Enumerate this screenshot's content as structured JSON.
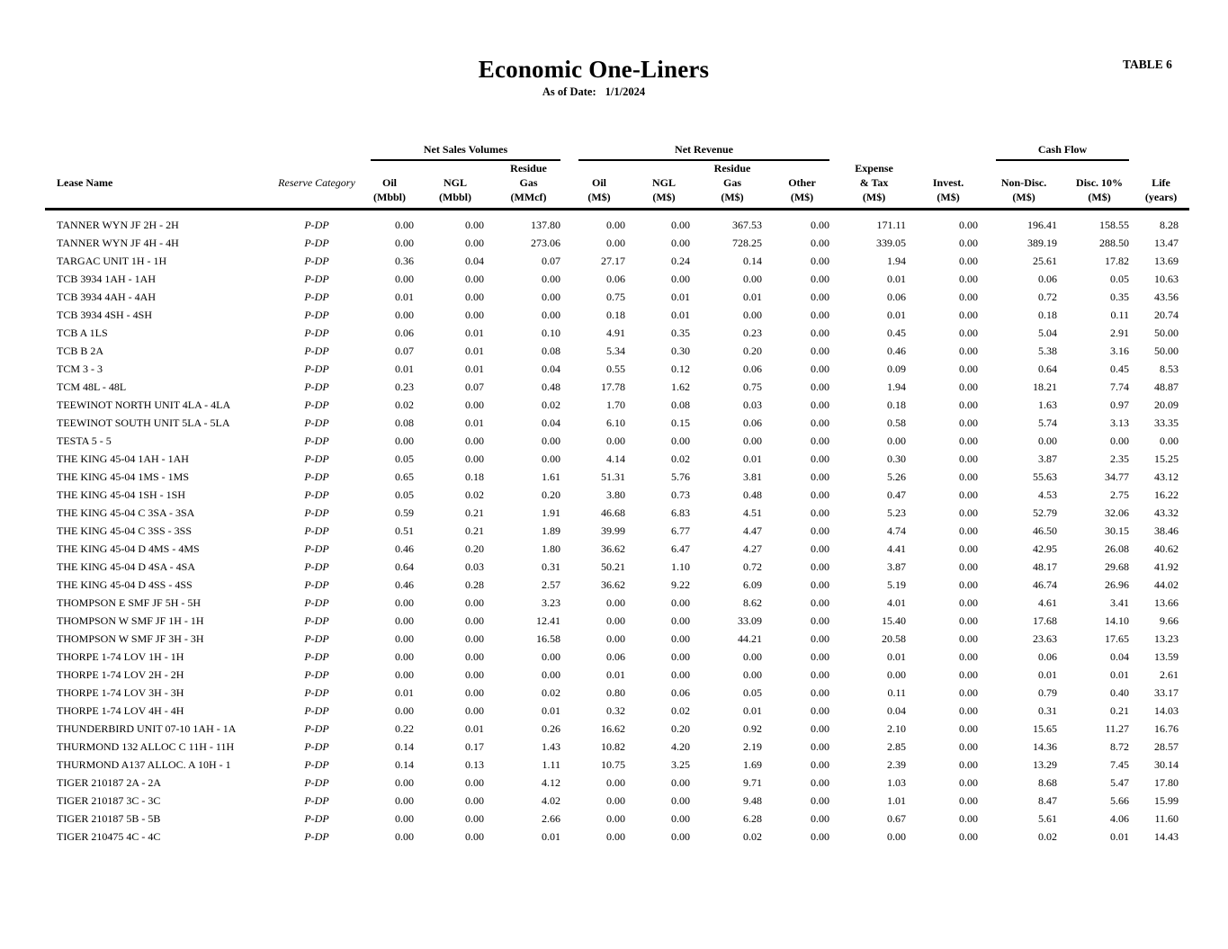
{
  "header": {
    "title": "Economic One-Liners",
    "as_of_label": "As of Date:",
    "as_of_date": "1/1/2024",
    "table_label": "TABLE 6"
  },
  "table": {
    "groups": {
      "net_sales_volumes": "Net Sales Volumes",
      "net_revenue": "Net Revenue",
      "cash_flow": "Cash Flow"
    },
    "columns": {
      "lease_name": [
        "Lease Name"
      ],
      "reserve_category": [
        "Reserve Category"
      ],
      "oil_vol": [
        "Oil",
        "(Mbbl)"
      ],
      "ngl_vol": [
        "NGL",
        "(Mbbl)"
      ],
      "gas_vol": [
        "Residue",
        "Gas",
        "(MMcf)"
      ],
      "oil_rev": [
        "Oil",
        "(M$)"
      ],
      "ngl_rev": [
        "NGL",
        "(M$)"
      ],
      "gas_rev": [
        "Residue",
        "Gas",
        "(M$)"
      ],
      "other_rev": [
        "Other",
        "(M$)"
      ],
      "expense_tax": [
        "Expense",
        "& Tax",
        "(M$)"
      ],
      "invest": [
        "Invest.",
        "(M$)"
      ],
      "nondisc": [
        "Non-Disc.",
        "(M$)"
      ],
      "disc10": [
        "Disc. 10%",
        "(M$)"
      ],
      "life": [
        "Life",
        "(years)"
      ]
    },
    "rows": [
      [
        "TANNER WYN JF 2H - 2H",
        "P-DP",
        "0.00",
        "0.00",
        "137.80",
        "0.00",
        "0.00",
        "367.53",
        "0.00",
        "171.11",
        "0.00",
        "196.41",
        "158.55",
        "8.28"
      ],
      [
        "TANNER WYN JF 4H - 4H",
        "P-DP",
        "0.00",
        "0.00",
        "273.06",
        "0.00",
        "0.00",
        "728.25",
        "0.00",
        "339.05",
        "0.00",
        "389.19",
        "288.50",
        "13.47"
      ],
      [
        "TARGAC UNIT 1H - 1H",
        "P-DP",
        "0.36",
        "0.04",
        "0.07",
        "27.17",
        "0.24",
        "0.14",
        "0.00",
        "1.94",
        "0.00",
        "25.61",
        "17.82",
        "13.69"
      ],
      [
        "TCB 3934 1AH - 1AH",
        "P-DP",
        "0.00",
        "0.00",
        "0.00",
        "0.06",
        "0.00",
        "0.00",
        "0.00",
        "0.01",
        "0.00",
        "0.06",
        "0.05",
        "10.63"
      ],
      [
        "TCB 3934 4AH - 4AH",
        "P-DP",
        "0.01",
        "0.00",
        "0.00",
        "0.75",
        "0.01",
        "0.01",
        "0.00",
        "0.06",
        "0.00",
        "0.72",
        "0.35",
        "43.56"
      ],
      [
        "TCB 3934 4SH - 4SH",
        "P-DP",
        "0.00",
        "0.00",
        "0.00",
        "0.18",
        "0.01",
        "0.00",
        "0.00",
        "0.01",
        "0.00",
        "0.18",
        "0.11",
        "20.74"
      ],
      [
        "TCB A 1LS",
        "P-DP",
        "0.06",
        "0.01",
        "0.10",
        "4.91",
        "0.35",
        "0.23",
        "0.00",
        "0.45",
        "0.00",
        "5.04",
        "2.91",
        "50.00"
      ],
      [
        "TCB B 2A",
        "P-DP",
        "0.07",
        "0.01",
        "0.08",
        "5.34",
        "0.30",
        "0.20",
        "0.00",
        "0.46",
        "0.00",
        "5.38",
        "3.16",
        "50.00"
      ],
      [
        "TCM 3 - 3",
        "P-DP",
        "0.01",
        "0.01",
        "0.04",
        "0.55",
        "0.12",
        "0.06",
        "0.00",
        "0.09",
        "0.00",
        "0.64",
        "0.45",
        "8.53"
      ],
      [
        "TCM 48L - 48L",
        "P-DP",
        "0.23",
        "0.07",
        "0.48",
        "17.78",
        "1.62",
        "0.75",
        "0.00",
        "1.94",
        "0.00",
        "18.21",
        "7.74",
        "48.87"
      ],
      [
        "TEEWINOT NORTH UNIT 4LA - 4LA",
        "P-DP",
        "0.02",
        "0.00",
        "0.02",
        "1.70",
        "0.08",
        "0.03",
        "0.00",
        "0.18",
        "0.00",
        "1.63",
        "0.97",
        "20.09"
      ],
      [
        "TEEWINOT SOUTH UNIT 5LA - 5LA",
        "P-DP",
        "0.08",
        "0.01",
        "0.04",
        "6.10",
        "0.15",
        "0.06",
        "0.00",
        "0.58",
        "0.00",
        "5.74",
        "3.13",
        "33.35"
      ],
      [
        "TESTA 5 - 5",
        "P-DP",
        "0.00",
        "0.00",
        "0.00",
        "0.00",
        "0.00",
        "0.00",
        "0.00",
        "0.00",
        "0.00",
        "0.00",
        "0.00",
        "0.00"
      ],
      [
        "THE KING 45-04 1AH - 1AH",
        "P-DP",
        "0.05",
        "0.00",
        "0.00",
        "4.14",
        "0.02",
        "0.01",
        "0.00",
        "0.30",
        "0.00",
        "3.87",
        "2.35",
        "15.25"
      ],
      [
        "THE KING 45-04 1MS - 1MS",
        "P-DP",
        "0.65",
        "0.18",
        "1.61",
        "51.31",
        "5.76",
        "3.81",
        "0.00",
        "5.26",
        "0.00",
        "55.63",
        "34.77",
        "43.12"
      ],
      [
        "THE KING 45-04 1SH - 1SH",
        "P-DP",
        "0.05",
        "0.02",
        "0.20",
        "3.80",
        "0.73",
        "0.48",
        "0.00",
        "0.47",
        "0.00",
        "4.53",
        "2.75",
        "16.22"
      ],
      [
        "THE KING 45-04 C 3SA - 3SA",
        "P-DP",
        "0.59",
        "0.21",
        "1.91",
        "46.68",
        "6.83",
        "4.51",
        "0.00",
        "5.23",
        "0.00",
        "52.79",
        "32.06",
        "43.32"
      ],
      [
        "THE KING 45-04 C 3SS - 3SS",
        "P-DP",
        "0.51",
        "0.21",
        "1.89",
        "39.99",
        "6.77",
        "4.47",
        "0.00",
        "4.74",
        "0.00",
        "46.50",
        "30.15",
        "38.46"
      ],
      [
        "THE KING 45-04 D 4MS - 4MS",
        "P-DP",
        "0.46",
        "0.20",
        "1.80",
        "36.62",
        "6.47",
        "4.27",
        "0.00",
        "4.41",
        "0.00",
        "42.95",
        "26.08",
        "40.62"
      ],
      [
        "THE KING 45-04 D 4SA - 4SA",
        "P-DP",
        "0.64",
        "0.03",
        "0.31",
        "50.21",
        "1.10",
        "0.72",
        "0.00",
        "3.87",
        "0.00",
        "48.17",
        "29.68",
        "41.92"
      ],
      [
        "THE KING 45-04 D 4SS - 4SS",
        "P-DP",
        "0.46",
        "0.28",
        "2.57",
        "36.62",
        "9.22",
        "6.09",
        "0.00",
        "5.19",
        "0.00",
        "46.74",
        "26.96",
        "44.02"
      ],
      [
        "THOMPSON E SMF JF 5H - 5H",
        "P-DP",
        "0.00",
        "0.00",
        "3.23",
        "0.00",
        "0.00",
        "8.62",
        "0.00",
        "4.01",
        "0.00",
        "4.61",
        "3.41",
        "13.66"
      ],
      [
        "THOMPSON W SMF JF 1H - 1H",
        "P-DP",
        "0.00",
        "0.00",
        "12.41",
        "0.00",
        "0.00",
        "33.09",
        "0.00",
        "15.40",
        "0.00",
        "17.68",
        "14.10",
        "9.66"
      ],
      [
        "THOMPSON W SMF JF 3H - 3H",
        "P-DP",
        "0.00",
        "0.00",
        "16.58",
        "0.00",
        "0.00",
        "44.21",
        "0.00",
        "20.58",
        "0.00",
        "23.63",
        "17.65",
        "13.23"
      ],
      [
        "THORPE 1-74 LOV 1H - 1H",
        "P-DP",
        "0.00",
        "0.00",
        "0.00",
        "0.06",
        "0.00",
        "0.00",
        "0.00",
        "0.01",
        "0.00",
        "0.06",
        "0.04",
        "13.59"
      ],
      [
        "THORPE 1-74 LOV 2H - 2H",
        "P-DP",
        "0.00",
        "0.00",
        "0.00",
        "0.01",
        "0.00",
        "0.00",
        "0.00",
        "0.00",
        "0.00",
        "0.01",
        "0.01",
        "2.61"
      ],
      [
        "THORPE 1-74 LOV 3H - 3H",
        "P-DP",
        "0.01",
        "0.00",
        "0.02",
        "0.80",
        "0.06",
        "0.05",
        "0.00",
        "0.11",
        "0.00",
        "0.79",
        "0.40",
        "33.17"
      ],
      [
        "THORPE 1-74 LOV 4H - 4H",
        "P-DP",
        "0.00",
        "0.00",
        "0.01",
        "0.32",
        "0.02",
        "0.01",
        "0.00",
        "0.04",
        "0.00",
        "0.31",
        "0.21",
        "14.03"
      ],
      [
        "THUNDERBIRD UNIT 07-10 1AH - 1A",
        "P-DP",
        "0.22",
        "0.01",
        "0.26",
        "16.62",
        "0.20",
        "0.92",
        "0.00",
        "2.10",
        "0.00",
        "15.65",
        "11.27",
        "16.76"
      ],
      [
        "THURMOND 132 ALLOC C 11H - 11H",
        "P-DP",
        "0.14",
        "0.17",
        "1.43",
        "10.82",
        "4.20",
        "2.19",
        "0.00",
        "2.85",
        "0.00",
        "14.36",
        "8.72",
        "28.57"
      ],
      [
        "THURMOND A137 ALLOC. A 10H - 1",
        "P-DP",
        "0.14",
        "0.13",
        "1.11",
        "10.75",
        "3.25",
        "1.69",
        "0.00",
        "2.39",
        "0.00",
        "13.29",
        "7.45",
        "30.14"
      ],
      [
        "TIGER 210187 2A - 2A",
        "P-DP",
        "0.00",
        "0.00",
        "4.12",
        "0.00",
        "0.00",
        "9.71",
        "0.00",
        "1.03",
        "0.00",
        "8.68",
        "5.47",
        "17.80"
      ],
      [
        "TIGER 210187 3C - 3C",
        "P-DP",
        "0.00",
        "0.00",
        "4.02",
        "0.00",
        "0.00",
        "9.48",
        "0.00",
        "1.01",
        "0.00",
        "8.47",
        "5.66",
        "15.99"
      ],
      [
        "TIGER 210187 5B - 5B",
        "P-DP",
        "0.00",
        "0.00",
        "2.66",
        "0.00",
        "0.00",
        "6.28",
        "0.00",
        "0.67",
        "0.00",
        "5.61",
        "4.06",
        "11.60"
      ],
      [
        "TIGER 210475 4C - 4C",
        "P-DP",
        "0.00",
        "0.00",
        "0.01",
        "0.00",
        "0.00",
        "0.02",
        "0.00",
        "0.00",
        "0.00",
        "0.02",
        "0.01",
        "14.43"
      ]
    ]
  }
}
